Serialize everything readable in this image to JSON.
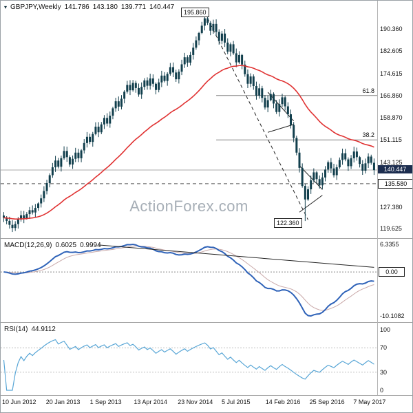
{
  "price_panel": {
    "header": {
      "marker_icon": "▾",
      "symbol": "GBPJPY,Weekly",
      "open": "141.786",
      "high": "143.180",
      "low": "139.771",
      "close": "140.447"
    },
    "watermark": "ActionForex.com",
    "labels": {
      "peak": "195.860",
      "trough": "122.360",
      "current": "140.447",
      "level": "135.580"
    },
    "axis_ticks": [
      "190.360",
      "182.605",
      "174.615",
      "166.860",
      "158.870",
      "151.115",
      "143.125",
      "127.380",
      "119.625"
    ]
  },
  "macd_panel": {
    "header": {
      "label": "MACD(12,26,9)",
      "main_value": "0.6025",
      "signal_value": "0.9994"
    },
    "axis_ticks": [
      "6.3355",
      "-10.1082"
    ],
    "zero_badge": "0.00",
    "axis_top": 6.3355,
    "axis_bottom": -10.1082
  },
  "rsi_panel": {
    "header": {
      "label": "RSI(14)",
      "value": "44.9112"
    },
    "axis_ticks": [
      "100",
      "70",
      "30",
      "0"
    ],
    "period": 14
  },
  "date_axis": [
    "10 Jun 2012",
    "20 Jan 2013",
    "1 Sep 2013",
    "13 Apr 2014",
    "23 Nov 2014",
    "5 Jul 2015",
    "14 Feb 2016",
    "25 Sep 2016",
    "7 May 2017"
  ],
  "chart_data": {
    "type": "candlestick+indicators",
    "symbol": "GBPJPY",
    "timeframe": "Weekly",
    "x_range": [
      "10 Jun 2012",
      "7 May 2017"
    ],
    "price_axis_range": [
      117.5,
      198.5
    ],
    "closes": [
      123.5,
      122.4,
      121.0,
      119.9,
      121.3,
      122.9,
      124.4,
      123.3,
      124.8,
      126.2,
      125.4,
      127.0,
      128.6,
      130.4,
      133.0,
      135.8,
      138.6,
      141.4,
      143.8,
      141.6,
      144.6,
      147.2,
      145.0,
      142.4,
      144.4,
      146.6,
      144.6,
      147.4,
      150.0,
      152.2,
      150.4,
      153.2,
      155.8,
      153.8,
      156.6,
      158.9,
      156.9,
      159.7,
      162.3,
      164.8,
      162.9,
      165.7,
      168.2,
      170.6,
      168.7,
      171.3,
      169.5,
      167.2,
      169.9,
      172.2,
      170.3,
      172.9,
      171.0,
      168.8,
      171.5,
      173.9,
      172.0,
      174.5,
      176.9,
      175.0,
      172.6,
      175.3,
      177.9,
      180.4,
      178.5,
      181.2,
      183.8,
      186.4,
      189.0,
      191.6,
      194.2,
      192.6,
      189.8,
      192.2,
      189.4,
      186.2,
      188.8,
      185.6,
      182.4,
      185.0,
      181.8,
      178.6,
      181.2,
      177.8,
      174.4,
      171.0,
      173.6,
      170.2,
      166.8,
      169.4,
      166.0,
      162.6,
      165.2,
      167.4,
      164.0,
      161.0,
      163.8,
      166.2,
      163.0,
      160.2,
      156.4,
      151.8,
      146.6,
      141.2,
      134.8,
      130.0,
      133.6,
      136.8,
      139.6,
      137.2,
      135.0,
      137.8,
      140.6,
      143.2,
      141.0,
      138.6,
      141.4,
      144.0,
      146.4,
      144.2,
      141.8,
      144.6,
      147.0,
      145.0,
      142.6,
      140.2,
      142.8,
      145.2,
      143.0,
      140.4
    ],
    "key_points": {
      "peak_index": 70,
      "peak_high": 195.86,
      "trough_index": 105,
      "trough_low": 122.36,
      "last_close": 140.447
    },
    "ma": {
      "type": "EMA",
      "period": 40
    },
    "drawings": [
      {
        "type": "hline",
        "value": 140.447,
        "style": "solid",
        "color": "#a9a9a9"
      },
      {
        "type": "hline",
        "value": 135.58,
        "style": "dashed",
        "color": "#555555"
      },
      {
        "type": "fib_line",
        "value": 166.86,
        "label": "61.8",
        "from_index": 74
      },
      {
        "type": "fib_line",
        "value": 151.115,
        "label": "38.2",
        "from_index": 74
      },
      {
        "type": "trendline",
        "from": [
          70,
          196.2
        ],
        "to": [
          106,
          122.8
        ],
        "style": "dashed"
      },
      {
        "type": "pattern_line",
        "from": [
          92,
          168.0
        ],
        "to": [
          101,
          157.8
        ]
      },
      {
        "type": "pattern_line",
        "from": [
          92,
          153.8
        ],
        "to": [
          101,
          156.6
        ]
      },
      {
        "type": "pattern_line",
        "from": [
          103,
          142.0
        ],
        "to": [
          111,
          133.5
        ]
      },
      {
        "type": "pattern_line",
        "from": [
          103,
          125.5
        ],
        "to": [
          111,
          131.5
        ]
      }
    ],
    "macd_trendline": {
      "from": [
        33,
        6.2
      ],
      "to": [
        129,
        1.05
      ]
    },
    "colors": {
      "candle": "#123f4d",
      "ma": "#e03131",
      "macd": "#2e62b8",
      "macd_signal": "#c9a9a9",
      "rsi": "#58a6d6"
    }
  }
}
